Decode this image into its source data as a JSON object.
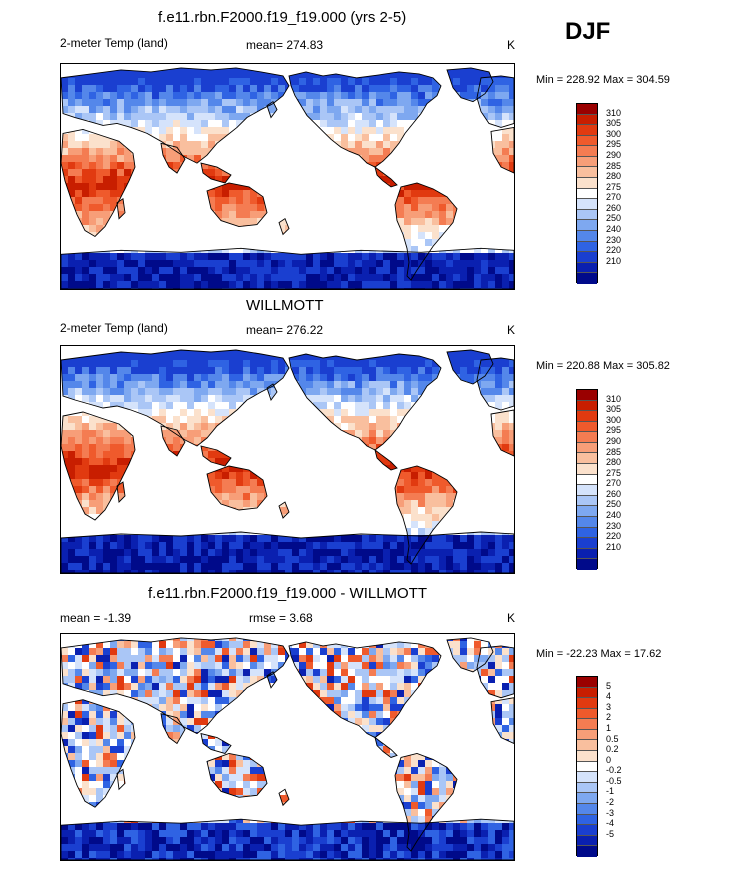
{
  "season": "DJF",
  "palette_temp": [
    "#9a0000",
    "#c81e00",
    "#e13a10",
    "#ef5a2c",
    "#f47c52",
    "#f79e78",
    "#f9bf9e",
    "#fbe1cc",
    "#ffffff",
    "#d5e3fb",
    "#aac6f6",
    "#7ea8f0",
    "#5487ea",
    "#2f63e3",
    "#1a3fd0",
    "#0a20b0",
    "#000a8a"
  ],
  "palette_diff": [
    "#9a0000",
    "#c81e00",
    "#e13a10",
    "#ef5a2c",
    "#f47c52",
    "#f79e78",
    "#f9bf9e",
    "#fbe1cc",
    "#ffffff",
    "#d5e3fb",
    "#aac6f6",
    "#7ea8f0",
    "#5487ea",
    "#2f63e3",
    "#1a3fd0",
    "#0a20b0",
    "#000a8a"
  ],
  "chart_data": [
    {
      "type": "heatmap",
      "title": "f.e11.rbn.F2000.f19_f19.000 (yrs 2-5)",
      "left_label": "2-meter Temp (land)",
      "mean_label": "mean= 274.83",
      "units": "K",
      "minmax": "Min = 228.92 Max = 304.59",
      "min": 228.92,
      "max": 304.59,
      "mean": 274.83,
      "colorbar_levels": [
        "310",
        "305",
        "300",
        "295",
        "290",
        "285",
        "280",
        "275",
        "270",
        "260",
        "250",
        "240",
        "230",
        "220",
        "210"
      ]
    },
    {
      "type": "heatmap",
      "title": "WILLMOTT",
      "left_label": "2-meter Temp (land)",
      "mean_label": "mean= 276.22",
      "units": "K",
      "minmax": "Min = 220.88 Max = 305.82",
      "min": 220.88,
      "max": 305.82,
      "mean": 276.22,
      "colorbar_levels": [
        "310",
        "305",
        "300",
        "295",
        "290",
        "285",
        "280",
        "275",
        "270",
        "260",
        "250",
        "240",
        "230",
        "220",
        "210"
      ]
    },
    {
      "type": "heatmap",
      "title": "f.e11.rbn.F2000.f19_f19.000 - WILLMOTT",
      "left_label": "mean =  -1.39",
      "mean_label": "rmse =   3.68",
      "units": "K",
      "minmax": "Min = -22.23 Max =  17.62",
      "min": -22.23,
      "max": 17.62,
      "mean": -1.39,
      "rmse": 3.68,
      "colorbar_levels": [
        "5",
        "4",
        "3",
        "2",
        "1",
        "0.5",
        "0.2",
        "0",
        "-0.2",
        "-0.5",
        "-1",
        "-2",
        "-3",
        "-4",
        "-5"
      ]
    }
  ]
}
